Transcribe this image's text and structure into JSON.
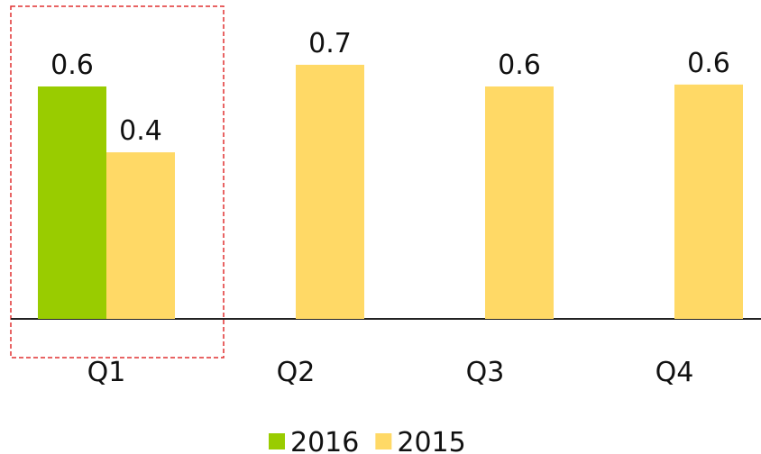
{
  "chart_data": {
    "type": "bar",
    "categories": [
      "Q1",
      "Q2",
      "Q3",
      "Q4"
    ],
    "series": [
      {
        "name": "2016",
        "color": "#99cc00",
        "values": [
          0.6,
          null,
          null,
          null
        ]
      },
      {
        "name": "2015",
        "color": "#ffd966",
        "values": [
          0.43,
          0.656,
          0.6,
          0.605
        ],
        "value_labels": [
          "0.4",
          "0.7",
          "0.6",
          "0.6"
        ]
      }
    ],
    "legend": "bottom"
  }
}
